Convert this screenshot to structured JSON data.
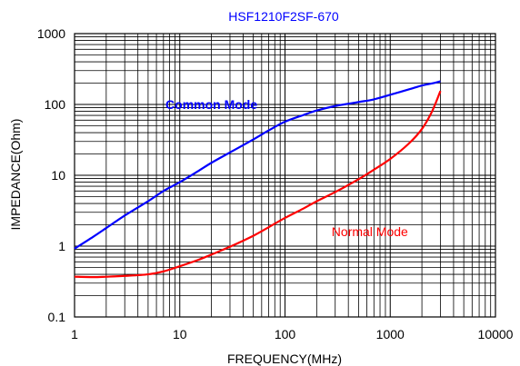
{
  "chart_data": {
    "type": "line",
    "title": "HSF1210F2SF-670",
    "xlabel": "FREQUENCY(MHz)",
    "ylabel": "IMPEDANCE(Ohm)",
    "xscale": "log",
    "yscale": "log",
    "xlim": [
      1,
      10000
    ],
    "ylim": [
      0.1,
      1000
    ],
    "grid": true,
    "xticks": [
      1,
      10,
      100,
      1000,
      10000
    ],
    "xtick_labels": [
      "1",
      "10",
      "100",
      "1000",
      "10000"
    ],
    "yticks": [
      0.1,
      1,
      10,
      100,
      1000
    ],
    "ytick_labels": [
      "0.1",
      "1",
      "10",
      "100",
      "1000"
    ],
    "series": [
      {
        "name": "Common Mode",
        "color": "#0000ff",
        "x": [
          1,
          1.5,
          2,
          3,
          5,
          7,
          10,
          15,
          20,
          30,
          50,
          70,
          100,
          150,
          200,
          300,
          500,
          700,
          1000,
          1500,
          2000,
          2500,
          3000
        ],
        "y": [
          0.92,
          1.35,
          1.8,
          2.7,
          4.3,
          6.0,
          8.0,
          11.5,
          15,
          21,
          32,
          43,
          57,
          71,
          82,
          95,
          108,
          118,
          137,
          163,
          185,
          198,
          212
        ]
      },
      {
        "name": "Normal Mode",
        "color": "#ff0000",
        "x": [
          1,
          1.5,
          2,
          3,
          5,
          7,
          10,
          15,
          20,
          30,
          50,
          70,
          100,
          150,
          200,
          300,
          500,
          700,
          1000,
          1500,
          2000,
          2500,
          3000
        ],
        "y": [
          0.37,
          0.365,
          0.37,
          0.38,
          0.4,
          0.44,
          0.52,
          0.64,
          0.76,
          0.98,
          1.4,
          1.85,
          2.5,
          3.4,
          4.3,
          5.8,
          8.8,
          12,
          17,
          28,
          45,
          80,
          155
        ]
      }
    ],
    "annotations": [
      {
        "text": "Common Mode",
        "color": "#0000ff",
        "x": 20,
        "y": 100
      },
      {
        "text": "Normal Mode",
        "color": "#ff0000",
        "x": 640,
        "y": 1.6
      }
    ]
  }
}
